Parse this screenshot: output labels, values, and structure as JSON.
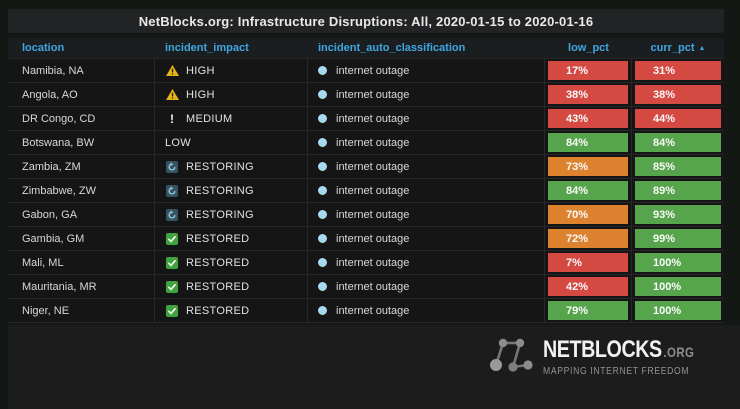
{
  "title": "NetBlocks.org: Infrastructure Disruptions: All, 2020-01-15 to 2020-01-16",
  "table": {
    "columns": [
      "location",
      "incident_impact",
      "incident_auto_classification",
      "low_pct",
      "curr_pct"
    ],
    "sort": {
      "column": "curr_pct",
      "direction": "asc",
      "arrow": "▲"
    },
    "cell_colors": {
      "red": "#d44a43",
      "orange": "#dd832f",
      "green": "#56a54c"
    },
    "impact_icons": {
      "HIGH": "warning-triangle-icon",
      "MEDIUM": "exclamation-icon",
      "LOW": "",
      "RESTORING": "restoring-sync-icon",
      "RESTORED": "restored-check-icon"
    },
    "classification_icon": "outage-dot-icon",
    "rows": [
      {
        "location": "Namibia, NA",
        "impact": "HIGH",
        "classification": "internet outage",
        "low": "17%",
        "low_color": "red",
        "curr": "31%",
        "curr_color": "red"
      },
      {
        "location": "Angola, AO",
        "impact": "HIGH",
        "classification": "internet outage",
        "low": "38%",
        "low_color": "red",
        "curr": "38%",
        "curr_color": "red"
      },
      {
        "location": "DR Congo, CD",
        "impact": "MEDIUM",
        "classification": "internet outage",
        "low": "43%",
        "low_color": "red",
        "curr": "44%",
        "curr_color": "red"
      },
      {
        "location": "Botswana, BW",
        "impact": "LOW",
        "classification": "internet outage",
        "low": "84%",
        "low_color": "green",
        "curr": "84%",
        "curr_color": "green"
      },
      {
        "location": "Zambia, ZM",
        "impact": "RESTORING",
        "classification": "internet outage",
        "low": "73%",
        "low_color": "orange",
        "curr": "85%",
        "curr_color": "green"
      },
      {
        "location": "Zimbabwe, ZW",
        "impact": "RESTORING",
        "classification": "internet outage",
        "low": "84%",
        "low_color": "green",
        "curr": "89%",
        "curr_color": "green"
      },
      {
        "location": "Gabon, GA",
        "impact": "RESTORING",
        "classification": "internet outage",
        "low": "70%",
        "low_color": "orange",
        "curr": "93%",
        "curr_color": "green"
      },
      {
        "location": "Gambia, GM",
        "impact": "RESTORED",
        "classification": "internet outage",
        "low": "72%",
        "low_color": "orange",
        "curr": "99%",
        "curr_color": "green"
      },
      {
        "location": "Mali, ML",
        "impact": "RESTORED",
        "classification": "internet outage",
        "low": "7%",
        "low_color": "red",
        "curr": "100%",
        "curr_color": "green"
      },
      {
        "location": "Mauritania, MR",
        "impact": "RESTORED",
        "classification": "internet outage",
        "low": "42%",
        "low_color": "red",
        "curr": "100%",
        "curr_color": "green"
      },
      {
        "location": "Niger, NE",
        "impact": "RESTORED",
        "classification": "internet outage",
        "low": "79%",
        "low_color": "green",
        "curr": "100%",
        "curr_color": "green"
      }
    ]
  },
  "footer": {
    "brand": "NETBLOCKS",
    "brand_suffix": ".ORG",
    "tagline": "MAPPING INTERNET FREEDOM"
  }
}
